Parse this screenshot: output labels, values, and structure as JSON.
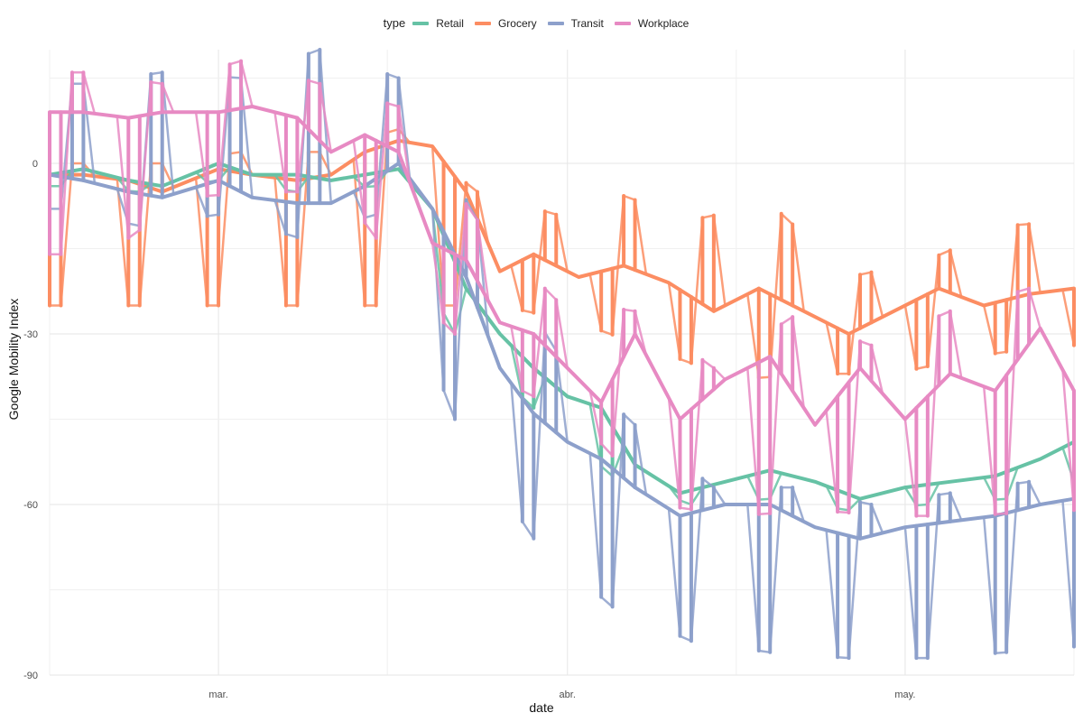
{
  "chart_data": {
    "type": "line",
    "title": "",
    "legend": {
      "title": "type",
      "position": "top",
      "entries": [
        "Retail",
        "Grocery",
        "Transit",
        "Workplace"
      ]
    },
    "xlabel": "date",
    "ylabel": "Google Mobility Index",
    "x_ticks": [
      "mar.",
      "abr.",
      "may."
    ],
    "y_ticks": [
      0,
      -30,
      -60,
      -90
    ],
    "ylim": [
      -90,
      20
    ],
    "xlim": [
      "2020-02-15",
      "2020-05-16"
    ],
    "grid": true,
    "series": [
      {
        "name": "Retail",
        "color": "#66C2A5",
        "points": [
          [
            "2020-02-15",
            -2
          ],
          [
            "2020-02-18",
            -1
          ],
          [
            "2020-02-22",
            -3
          ],
          [
            "2020-02-25",
            -4
          ],
          [
            "2020-03-01",
            0
          ],
          [
            "2020-03-04",
            -2
          ],
          [
            "2020-03-08",
            -2
          ],
          [
            "2020-03-11",
            -3
          ],
          [
            "2020-03-14",
            -2
          ],
          [
            "2020-03-17",
            -1
          ],
          [
            "2020-03-20",
            -8
          ],
          [
            "2020-03-23",
            -22
          ],
          [
            "2020-03-26",
            -30
          ],
          [
            "2020-03-29",
            -36
          ],
          [
            "2020-04-01",
            -41
          ],
          [
            "2020-04-04",
            -43
          ],
          [
            "2020-04-07",
            -53
          ],
          [
            "2020-04-11",
            -58
          ],
          [
            "2020-04-15",
            -56
          ],
          [
            "2020-04-19",
            -54
          ],
          [
            "2020-04-23",
            -56
          ],
          [
            "2020-04-27",
            -59
          ],
          [
            "2020-05-01",
            -57
          ],
          [
            "2020-05-05",
            -56
          ],
          [
            "2020-05-09",
            -55
          ],
          [
            "2020-05-13",
            -52
          ],
          [
            "2020-05-16",
            -49
          ]
        ],
        "weekly_low": [
          [
            "2020-02-16",
            -4
          ],
          [
            "2020-02-23",
            -5
          ],
          [
            "2020-03-01",
            -3
          ],
          [
            "2020-03-08",
            -5
          ],
          [
            "2020-03-15",
            -4
          ],
          [
            "2020-03-22",
            -30
          ],
          [
            "2020-03-29",
            -43
          ],
          [
            "2020-04-05",
            -55
          ],
          [
            "2020-04-12",
            -60
          ],
          [
            "2020-04-19",
            -59
          ],
          [
            "2020-04-26",
            -61
          ],
          [
            "2020-05-03",
            -60
          ],
          [
            "2020-05-10",
            -59
          ],
          [
            "2020-05-16",
            -56
          ]
        ]
      },
      {
        "name": "Grocery",
        "color": "#FC8D62",
        "points": [
          [
            "2020-02-15",
            -2
          ],
          [
            "2020-02-18",
            -2
          ],
          [
            "2020-02-22",
            -3
          ],
          [
            "2020-02-25",
            -5
          ],
          [
            "2020-03-01",
            -1
          ],
          [
            "2020-03-04",
            -2
          ],
          [
            "2020-03-08",
            -3
          ],
          [
            "2020-03-11",
            -2
          ],
          [
            "2020-03-14",
            2
          ],
          [
            "2020-03-17",
            4
          ],
          [
            "2020-03-20",
            3
          ],
          [
            "2020-03-23",
            -5
          ],
          [
            "2020-03-26",
            -19
          ],
          [
            "2020-03-29",
            -16
          ],
          [
            "2020-04-02",
            -20
          ],
          [
            "2020-04-06",
            -18
          ],
          [
            "2020-04-10",
            -21
          ],
          [
            "2020-04-14",
            -26
          ],
          [
            "2020-04-18",
            -22
          ],
          [
            "2020-04-22",
            -26
          ],
          [
            "2020-04-26",
            -30
          ],
          [
            "2020-04-30",
            -26
          ],
          [
            "2020-05-04",
            -22
          ],
          [
            "2020-05-08",
            -25
          ],
          [
            "2020-05-12",
            -23
          ],
          [
            "2020-05-16",
            -22
          ]
        ],
        "weekly_high": [
          [
            "2020-02-18",
            0
          ],
          [
            "2020-02-25",
            0
          ],
          [
            "2020-03-03",
            2
          ],
          [
            "2020-03-10",
            2
          ],
          [
            "2020-03-17",
            6
          ],
          [
            "2020-03-24",
            -5
          ],
          [
            "2020-03-31",
            -9
          ],
          [
            "2020-04-05",
            -5
          ],
          [
            "2020-04-12",
            -10
          ],
          [
            "2020-04-19",
            -7
          ],
          [
            "2020-04-26",
            -20
          ],
          [
            "2020-05-03",
            -17
          ],
          [
            "2020-05-10",
            -11
          ],
          [
            "2020-05-16",
            -10
          ]
        ],
        "weekly_low": [
          [
            "2020-03-26",
            -25
          ],
          [
            "2020-04-02",
            -28
          ],
          [
            "2020-04-09",
            -33
          ],
          [
            "2020-04-16",
            -38
          ],
          [
            "2020-04-23",
            -37
          ],
          [
            "2020-04-30",
            -37
          ],
          [
            "2020-05-07",
            -34
          ],
          [
            "2020-05-14",
            -32
          ]
        ]
      },
      {
        "name": "Transit",
        "color": "#8DA0CB",
        "points": [
          [
            "2020-02-15",
            -2
          ],
          [
            "2020-02-18",
            -3
          ],
          [
            "2020-02-22",
            -5
          ],
          [
            "2020-02-25",
            -6
          ],
          [
            "2020-03-01",
            -3
          ],
          [
            "2020-03-04",
            -6
          ],
          [
            "2020-03-08",
            -7
          ],
          [
            "2020-03-11",
            -7
          ],
          [
            "2020-03-14",
            -4
          ],
          [
            "2020-03-17",
            0
          ],
          [
            "2020-03-20",
            -8
          ],
          [
            "2020-03-23",
            -20
          ],
          [
            "2020-03-26",
            -36
          ],
          [
            "2020-03-29",
            -44
          ],
          [
            "2020-04-01",
            -49
          ],
          [
            "2020-04-04",
            -52
          ],
          [
            "2020-04-07",
            -57
          ],
          [
            "2020-04-11",
            -62
          ],
          [
            "2020-04-15",
            -60
          ],
          [
            "2020-04-19",
            -60
          ],
          [
            "2020-04-23",
            -64
          ],
          [
            "2020-04-27",
            -66
          ],
          [
            "2020-05-01",
            -64
          ],
          [
            "2020-05-05",
            -63
          ],
          [
            "2020-05-09",
            -62
          ],
          [
            "2020-05-13",
            -60
          ],
          [
            "2020-05-16",
            -59
          ]
        ],
        "weekly_high": [
          [
            "2020-02-18",
            14
          ],
          [
            "2020-02-25",
            16
          ],
          [
            "2020-03-03",
            15
          ],
          [
            "2020-03-10",
            20
          ],
          [
            "2020-03-17",
            15
          ],
          [
            "2020-03-24",
            -10
          ],
          [
            "2020-03-31",
            -33
          ],
          [
            "2020-04-07",
            -46
          ],
          [
            "2020-04-14",
            -57
          ],
          [
            "2020-04-21",
            -57
          ],
          [
            "2020-04-28",
            -60
          ],
          [
            "2020-05-05",
            -58
          ],
          [
            "2020-05-12",
            -56
          ],
          [
            "2020-05-16",
            -56
          ]
        ],
        "weekly_low": [
          [
            "2020-02-16",
            -8
          ],
          [
            "2020-02-23",
            -11
          ],
          [
            "2020-03-01",
            -9
          ],
          [
            "2020-03-08",
            -13
          ],
          [
            "2020-03-15",
            -9
          ],
          [
            "2020-03-22",
            -45
          ],
          [
            "2020-03-29",
            -66
          ],
          [
            "2020-04-05",
            -78
          ],
          [
            "2020-04-12",
            -84
          ],
          [
            "2020-04-19",
            -86
          ],
          [
            "2020-04-26",
            -87
          ],
          [
            "2020-05-03",
            -87
          ],
          [
            "2020-05-10",
            -86
          ],
          [
            "2020-05-16",
            -85
          ]
        ]
      },
      {
        "name": "Workplace",
        "color": "#E78AC3",
        "points": [
          [
            "2020-02-15",
            9
          ],
          [
            "2020-02-18",
            9
          ],
          [
            "2020-02-22",
            8
          ],
          [
            "2020-02-25",
            9
          ],
          [
            "2020-03-01",
            9
          ],
          [
            "2020-03-04",
            10
          ],
          [
            "2020-03-08",
            8
          ],
          [
            "2020-03-11",
            2
          ],
          [
            "2020-03-14",
            5
          ],
          [
            "2020-03-17",
            2
          ],
          [
            "2020-03-20",
            -14
          ],
          [
            "2020-03-23",
            -17
          ],
          [
            "2020-03-26",
            -28
          ],
          [
            "2020-03-29",
            -30
          ],
          [
            "2020-04-01",
            -36
          ],
          [
            "2020-04-04",
            -42
          ],
          [
            "2020-04-07",
            -30
          ],
          [
            "2020-04-11",
            -45
          ],
          [
            "2020-04-15",
            -38
          ],
          [
            "2020-04-19",
            -34
          ],
          [
            "2020-04-23",
            -46
          ],
          [
            "2020-04-27",
            -36
          ],
          [
            "2020-05-01",
            -45
          ],
          [
            "2020-05-05",
            -37
          ],
          [
            "2020-05-09",
            -40
          ],
          [
            "2020-05-13",
            -29
          ],
          [
            "2020-05-16",
            -40
          ]
        ],
        "weekly_high": [
          [
            "2020-02-18",
            16
          ],
          [
            "2020-02-25",
            14
          ],
          [
            "2020-03-03",
            18
          ],
          [
            "2020-03-10",
            14
          ],
          [
            "2020-03-17",
            10
          ],
          [
            "2020-03-24",
            -10
          ],
          [
            "2020-03-31",
            -24
          ],
          [
            "2020-04-07",
            -26
          ],
          [
            "2020-04-14",
            -36
          ],
          [
            "2020-04-21",
            -27
          ],
          [
            "2020-04-28",
            -32
          ],
          [
            "2020-05-05",
            -26
          ],
          [
            "2020-05-12",
            -22
          ],
          [
            "2020-05-16",
            -28
          ]
        ],
        "weekly_low": [
          [
            "2020-02-20",
            -16
          ],
          [
            "2020-02-27",
            -6
          ],
          [
            "2020-03-05",
            -5
          ],
          [
            "2020-03-12",
            -5
          ],
          [
            "2020-03-19",
            -24
          ],
          [
            "2020-03-26",
            -38
          ],
          [
            "2020-04-02",
            -45
          ],
          [
            "2020-04-09",
            -60
          ],
          [
            "2020-04-16",
            -62
          ],
          [
            "2020-04-23",
            -61
          ],
          [
            "2020-04-30",
            -62
          ],
          [
            "2020-05-07",
            -62
          ],
          [
            "2020-05-14",
            -61
          ]
        ]
      }
    ]
  }
}
